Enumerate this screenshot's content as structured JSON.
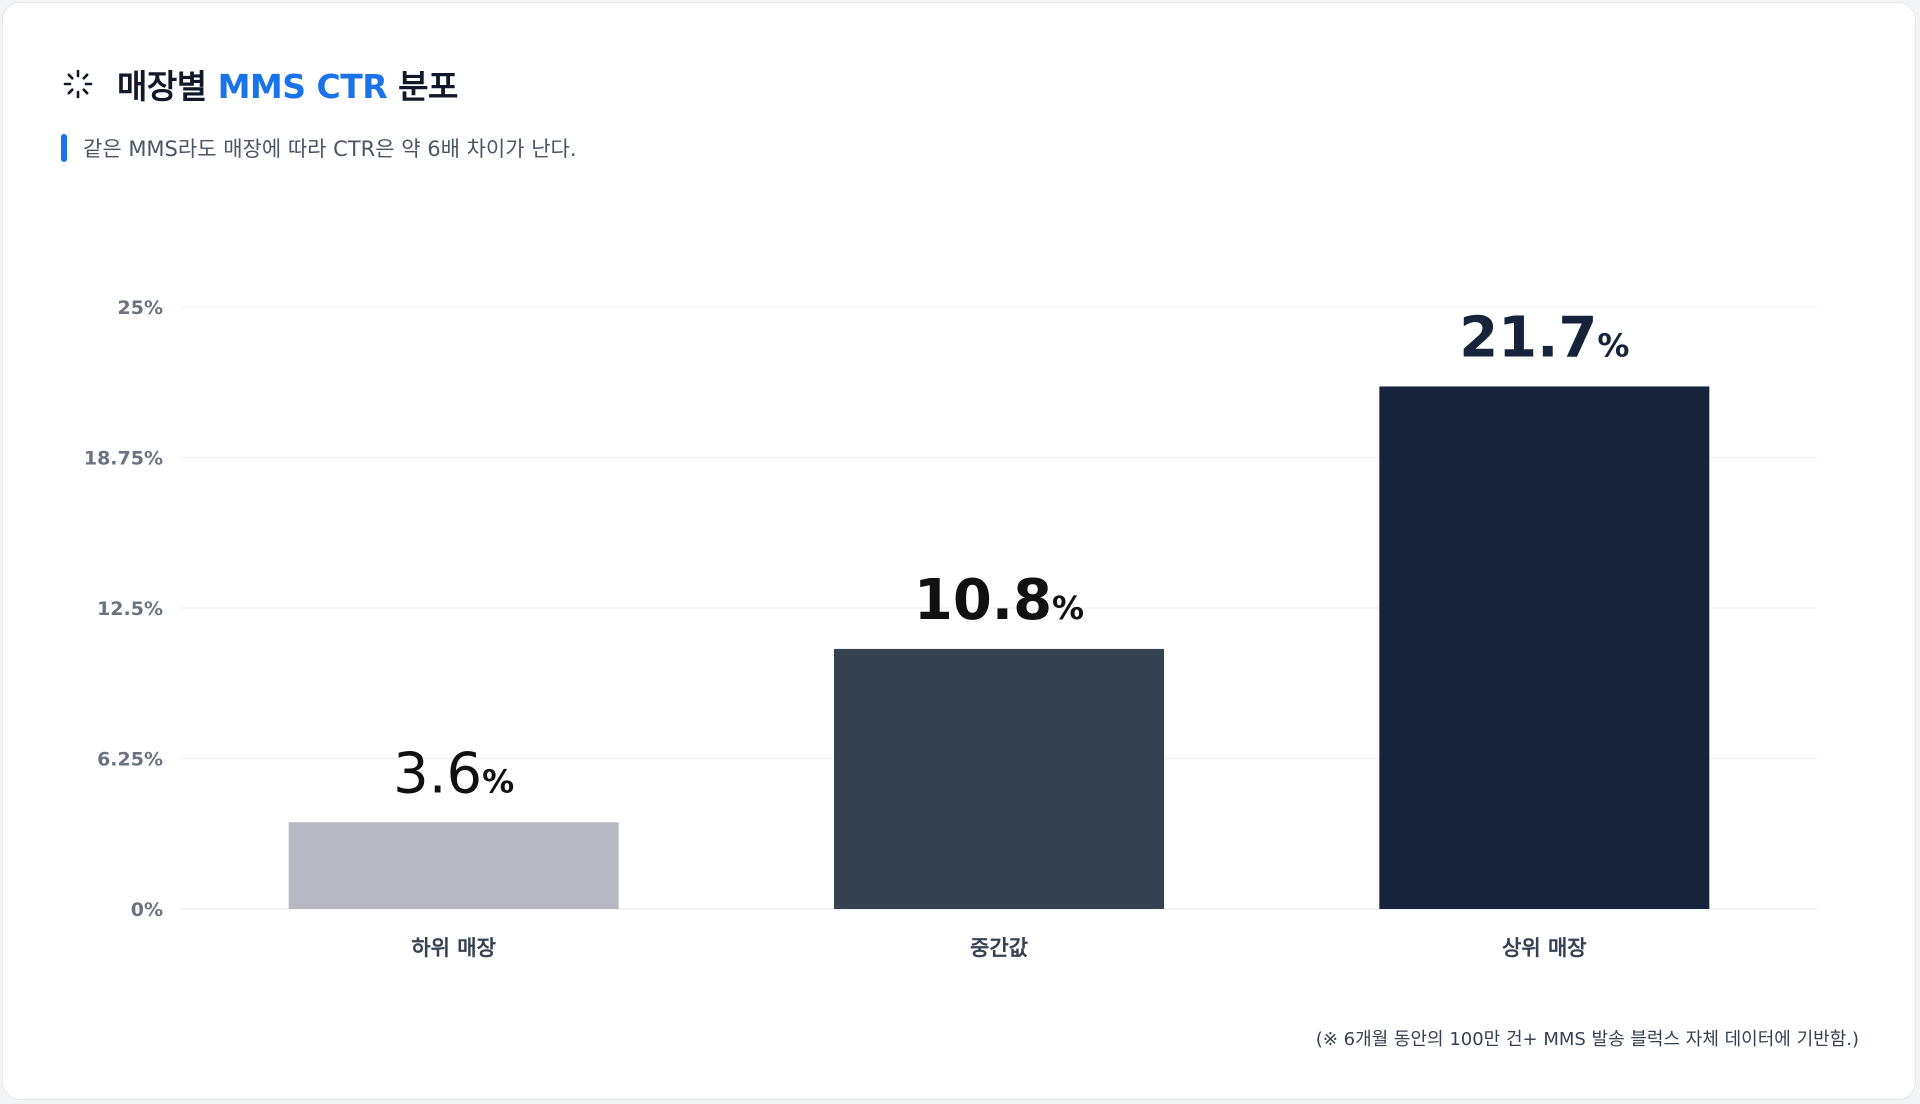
{
  "header": {
    "title_prefix": "매장별 ",
    "title_accent": "MMS CTR",
    "title_suffix": " 분포",
    "subtitle": "같은 MMS라도 매장에 따라 CTR은 약 6배 차이가 난다.",
    "accent_color": "#1a73e8",
    "icon": "spinner-icon"
  },
  "chart_data": {
    "type": "bar",
    "categories": [
      "하위 매장",
      "중간값",
      "상위 매장"
    ],
    "values": [
      3.6,
      10.8,
      21.7
    ],
    "value_unit": "%",
    "value_labels": [
      "3.6",
      "10.8",
      "21.7"
    ],
    "bar_colors": [
      "#b7b8c1",
      "#374250",
      "#16233a"
    ],
    "ylim": [
      0,
      25
    ],
    "y_ticks": [
      0,
      6.25,
      12.5,
      18.75,
      25
    ],
    "y_tick_labels": [
      "0%",
      "6.25%",
      "12.5%",
      "18.75%",
      "25%"
    ],
    "grid": true,
    "legend": "none",
    "xlabel": "",
    "ylabel": ""
  },
  "footnote": "(※ 6개월 동안의 100만 건+ MMS 발송 블럭스 자체 데이터에 기반함.)"
}
